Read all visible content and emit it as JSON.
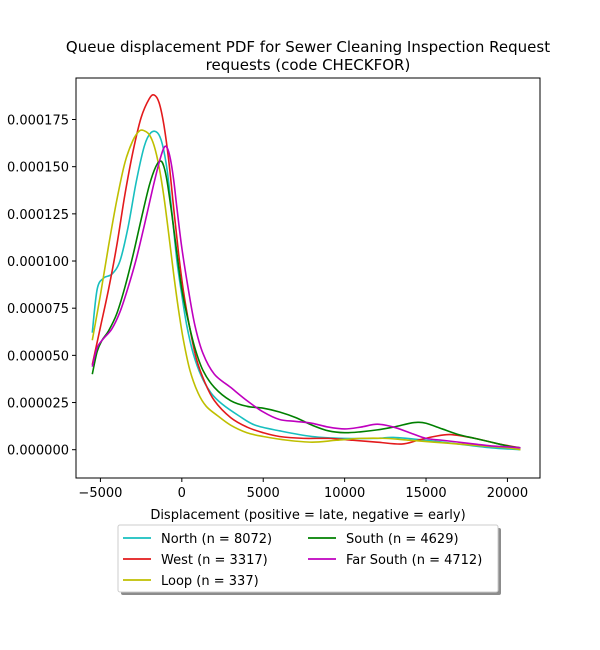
{
  "chart_data": {
    "type": "line",
    "title_lines": [
      "Queue displacement PDF for Sewer Cleaning Inspection Request",
      "requests (code CHECKFOR)"
    ],
    "xlabel": "Displacement (positive = late, negative = early)",
    "ylabel": "",
    "xlim": [
      -6500,
      22000
    ],
    "ylim": [
      -1.5e-05,
      0.000197
    ],
    "xticks": [
      {
        "value": -5000,
        "label": "−5000"
      },
      {
        "value": 0,
        "label": "0"
      },
      {
        "value": 5000,
        "label": "5000"
      },
      {
        "value": 10000,
        "label": "10000"
      },
      {
        "value": 15000,
        "label": "15000"
      },
      {
        "value": 20000,
        "label": "20000"
      }
    ],
    "yticks": [
      {
        "value": 0.0,
        "label": "0.000000"
      },
      {
        "value": 2.5e-05,
        "label": "0.000025"
      },
      {
        "value": 5e-05,
        "label": "0.000050"
      },
      {
        "value": 7.5e-05,
        "label": "0.000075"
      },
      {
        "value": 0.0001,
        "label": "0.000100"
      },
      {
        "value": 0.000125,
        "label": "0.000125"
      },
      {
        "value": 0.00015,
        "label": "0.000150"
      },
      {
        "value": 0.000175,
        "label": "0.000175"
      }
    ],
    "grid": false,
    "legend": {
      "placement": "below",
      "columns": 2
    },
    "series": [
      {
        "name": "North (n = 8072)",
        "color": "#17bfbf",
        "x": [
          -5500,
          -5200,
          -4800,
          -4300,
          -3800,
          -3300,
          -2800,
          -2300,
          -1900,
          -1500,
          -1200,
          -900,
          -600,
          -300,
          0,
          300,
          700,
          1200,
          1800,
          2500,
          3500,
          4500,
          6000,
          8000,
          10000,
          12000,
          13000,
          15000,
          17000,
          19000,
          20800
        ],
        "y": [
          6.2e-05,
          8.5e-05,
          9.1e-05,
          9.3e-05,
          0.0001,
          0.000118,
          0.000142,
          0.000161,
          0.000168,
          0.000168,
          0.000162,
          0.000148,
          0.000125,
          0.0001,
          8.2e-05,
          6.6e-05,
          5.1e-05,
          3.9e-05,
          3e-05,
          2.4e-05,
          1.8e-05,
          1.3e-05,
          1e-05,
          7e-06,
          6e-06,
          6e-06,
          6.5e-06,
          5e-06,
          3e-06,
          1e-06,
          0.0
        ]
      },
      {
        "name": "West (n = 3317)",
        "color": "#e31a1c",
        "x": [
          -5500,
          -5000,
          -4500,
          -4000,
          -3500,
          -3000,
          -2500,
          -2000,
          -1700,
          -1400,
          -1100,
          -800,
          -500,
          -200,
          100,
          500,
          900,
          1400,
          2000,
          3000,
          4000,
          5000,
          6000,
          7500,
          9000,
          10500,
          12000,
          13500,
          14500,
          15500,
          16500,
          18000,
          19500,
          20800
        ],
        "y": [
          4.5e-05,
          6.5e-05,
          8.5e-05,
          0.000108,
          0.000135,
          0.000158,
          0.000176,
          0.000186,
          0.000188,
          0.000184,
          0.000172,
          0.000153,
          0.000128,
          0.000104,
          8.4e-05,
          6.4e-05,
          4.8e-05,
          3.6e-05,
          2.6e-05,
          1.7e-05,
          1.2e-05,
          9e-06,
          7e-06,
          6e-06,
          6e-06,
          5e-06,
          4e-06,
          3e-06,
          5e-06,
          7e-06,
          8e-06,
          6e-06,
          3e-06,
          1e-06
        ]
      },
      {
        "name": "Loop (n = 337)",
        "color": "#bfbf00",
        "x": [
          -5500,
          -5000,
          -4500,
          -4000,
          -3500,
          -3000,
          -2600,
          -2300,
          -2000,
          -1700,
          -1400,
          -1100,
          -800,
          -500,
          -200,
          100,
          500,
          1000,
          1500,
          2200,
          3000,
          4000,
          5000,
          6500,
          8000,
          9500,
          11000,
          12500,
          14000,
          15500,
          17000,
          18500,
          20000,
          20800
        ],
        "y": [
          5.8e-05,
          8.2e-05,
          0.000108,
          0.000132,
          0.000152,
          0.000164,
          0.000169,
          0.000169,
          0.000167,
          0.000161,
          0.00015,
          0.000134,
          0.000114,
          9.3e-05,
          7.4e-05,
          5.8e-05,
          4.2e-05,
          3e-05,
          2.3e-05,
          1.8e-05,
          1.3e-05,
          9e-06,
          7e-06,
          5e-06,
          4e-06,
          5e-06,
          6e-06,
          6e-06,
          5e-06,
          4e-06,
          3e-06,
          2e-06,
          1e-06,
          0.0
        ]
      },
      {
        "name": "South (n = 4629)",
        "color": "#008000",
        "x": [
          -5500,
          -5200,
          -4900,
          -4500,
          -4000,
          -3500,
          -3000,
          -2500,
          -2000,
          -1600,
          -1300,
          -1100,
          -900,
          -600,
          -300,
          0,
          400,
          800,
          1300,
          2000,
          3000,
          4000,
          5000,
          6000,
          7000,
          8000,
          9000,
          10000,
          11000,
          12000,
          13000,
          14000,
          14500,
          15000,
          16000,
          17000,
          18000,
          19000,
          20000,
          20800
        ],
        "y": [
          4e-05,
          5.2e-05,
          5.8e-05,
          6.3e-05,
          7.2e-05,
          8.6e-05,
          0.000103,
          0.000122,
          0.00014,
          0.00015,
          0.000153,
          0.00015,
          0.000142,
          0.000124,
          0.000104,
          8.5e-05,
          6.8e-05,
          5.4e-05,
          4.2e-05,
          3.3e-05,
          2.6e-05,
          2.3e-05,
          2.2e-05,
          2e-05,
          1.7e-05,
          1.3e-05,
          1e-05,
          9e-06,
          9.5e-06,
          1.05e-05,
          1.2e-05,
          1.4e-05,
          1.45e-05,
          1.4e-05,
          1.1e-05,
          8e-06,
          6e-06,
          4e-06,
          2e-06,
          1e-06
        ]
      },
      {
        "name": "Far South (n = 4712)",
        "color": "#bf00bf",
        "x": [
          -5500,
          -5200,
          -4800,
          -4300,
          -3800,
          -3300,
          -2800,
          -2300,
          -1800,
          -1400,
          -1100,
          -900,
          -700,
          -500,
          -300,
          0,
          400,
          800,
          1300,
          2000,
          3000,
          4000,
          5000,
          6000,
          7000,
          8000,
          9000,
          10000,
          11000,
          12000,
          13000,
          14000,
          15000,
          16000,
          17000,
          18000,
          19000,
          20000,
          20800
        ],
        "y": [
          4.4e-05,
          5.4e-05,
          5.9e-05,
          6.4e-05,
          7.3e-05,
          8.6e-05,
          0.000101,
          0.000119,
          0.000138,
          0.000152,
          0.00016,
          0.00016,
          0.000154,
          0.000143,
          0.000128,
          0.000107,
          8.5e-05,
          6.6e-05,
          5.1e-05,
          4e-05,
          3.3e-05,
          2.6e-05,
          2e-05,
          1.6e-05,
          1.5e-05,
          1.4e-05,
          1.2e-05,
          1.1e-05,
          1.2e-05,
          1.35e-05,
          1.2e-05,
          9e-06,
          6e-06,
          5e-06,
          4e-06,
          3e-06,
          2e-06,
          1.5e-06,
          1e-06
        ]
      }
    ]
  }
}
